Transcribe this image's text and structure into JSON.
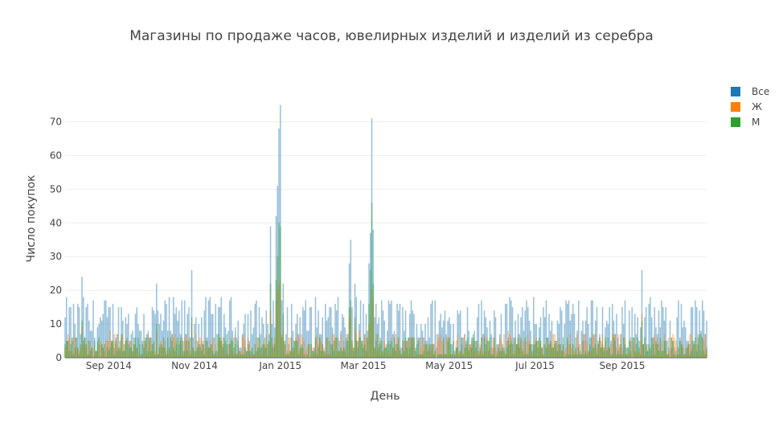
{
  "chart_data": {
    "type": "bar",
    "title": "Магазины по продаже часов, ювелирных изделий и изделий из серебра",
    "xlabel": "День",
    "ylabel": "Число покупок",
    "ylim": [
      0,
      78
    ],
    "y_ticks": [
      0,
      10,
      20,
      30,
      40,
      50,
      60,
      70
    ],
    "x_range": [
      "2014-08-01",
      "2015-10-31"
    ],
    "x_tick_labels": [
      {
        "date": "2014-09-01",
        "label": "Sep 2014"
      },
      {
        "date": "2014-11-01",
        "label": "Nov 2014"
      },
      {
        "date": "2015-01-01",
        "label": "Jan 2015"
      },
      {
        "date": "2015-03-01",
        "label": "Mar 2015"
      },
      {
        "date": "2015-05-01",
        "label": "May 2015"
      },
      {
        "date": "2015-07-01",
        "label": "Jul 2015"
      },
      {
        "date": "2015-09-01",
        "label": "Sep 2015"
      }
    ],
    "grid": true,
    "legend_position": "top-right",
    "bar_mode": "overlay",
    "series": [
      {
        "name": "Все",
        "color": "#1f77b4"
      },
      {
        "name": "Ж",
        "color": "#ff7f0e"
      },
      {
        "name": "М",
        "color": "#2ca02c"
      }
    ],
    "highlights": [
      {
        "date": "2014-12-25",
        "all": 39,
        "female": 14,
        "male": 22
      },
      {
        "date": "2014-12-29",
        "all": 42,
        "female": 17,
        "male": 23
      },
      {
        "date": "2014-12-30",
        "all": 51,
        "female": 20,
        "male": 30
      },
      {
        "date": "2014-12-31",
        "all": 68,
        "female": 22,
        "male": 40
      },
      {
        "date": "2015-01-01",
        "all": 75,
        "female": 23,
        "male": 39
      },
      {
        "date": "2015-01-03",
        "all": 22,
        "female": 8,
        "male": 13
      },
      {
        "date": "2015-02-20",
        "all": 35,
        "female": 14,
        "male": 17
      },
      {
        "date": "2015-02-19",
        "all": 28,
        "female": 12,
        "male": 15
      },
      {
        "date": "2015-02-23",
        "all": 22,
        "female": 9,
        "male": 12
      },
      {
        "date": "2015-03-05",
        "all": 28,
        "female": 10,
        "male": 16
      },
      {
        "date": "2015-03-06",
        "all": 37,
        "female": 12,
        "male": 26
      },
      {
        "date": "2015-03-07",
        "all": 71,
        "female": 20,
        "male": 46
      },
      {
        "date": "2015-03-08",
        "all": 38,
        "female": 17,
        "male": 22
      },
      {
        "date": "2014-10-30",
        "all": 26,
        "female": 10,
        "male": 12
      },
      {
        "date": "2015-09-15",
        "all": 26,
        "female": 13,
        "male": 11
      },
      {
        "date": "2014-08-13",
        "all": 24,
        "female": 9,
        "male": 11
      },
      {
        "date": "2014-10-05",
        "all": 22,
        "female": 8,
        "male": 10
      }
    ],
    "baseline": {
      "all_mean": 10,
      "female_mean": 4,
      "male_mean": 3.5
    }
  }
}
